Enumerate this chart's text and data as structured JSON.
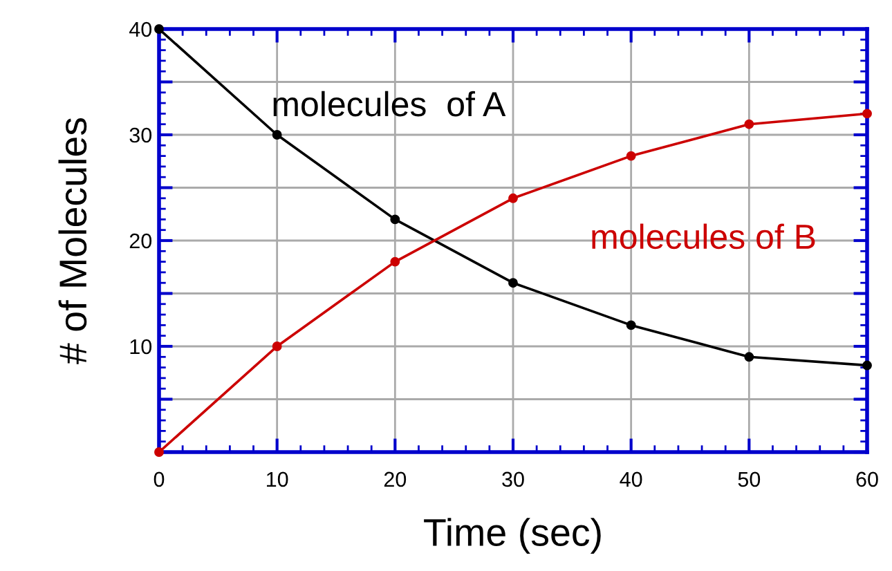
{
  "chart_data": {
    "type": "line",
    "xlabel": "Time (sec)",
    "ylabel": "# of Molecules",
    "x": [
      0,
      10,
      20,
      30,
      40,
      50,
      60
    ],
    "series": [
      {
        "name": "molecules  of A",
        "color": "#000000",
        "values": [
          40,
          30,
          22,
          16,
          12,
          9,
          8.2
        ]
      },
      {
        "name": "molecules of B",
        "color": "#cc0000",
        "values": [
          0,
          10,
          18,
          24,
          28,
          31,
          32
        ]
      }
    ],
    "xlim": [
      0,
      60
    ],
    "ylim": [
      0,
      40
    ],
    "xticks": [
      0,
      10,
      20,
      30,
      40,
      50,
      60
    ],
    "yticks": [
      {
        "value": 0,
        "label": null
      },
      {
        "value": 5,
        "label": null
      },
      10,
      {
        "value": 15,
        "label": null
      },
      20,
      {
        "value": 25,
        "label": null
      },
      30,
      {
        "value": 35,
        "label": null
      },
      40
    ],
    "grid": true,
    "marker": "circle",
    "line_style": "solid"
  }
}
